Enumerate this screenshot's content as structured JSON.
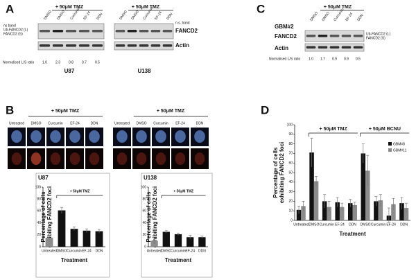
{
  "panel_a": {
    "label": "A",
    "treatments": [
      "+ 50μM TMZ",
      "+ 50μM TMZ"
    ],
    "lanes_u87": [
      "DMSO",
      "DMSO",
      "Curcumin",
      "EF-24",
      "DDN"
    ],
    "lanes_u138": [
      "DMSO",
      "DMSO",
      "Curcumin",
      "EF-24",
      "DDN"
    ],
    "band_labels_left": [
      "ns band",
      "Ub-FANCD2 (L)",
      "FANCD2 (S)"
    ],
    "band_label_right": "n.s. band",
    "protein": "FANCD2",
    "loading": "Actin",
    "ratio_label": "Normalised L/S ratio",
    "ratios": [
      "1.0",
      "2.3",
      "0.8",
      "0.7",
      "0.5"
    ],
    "cell_lines": [
      "U87",
      "U138"
    ]
  },
  "panel_c": {
    "label": "C",
    "treatment": "+ 50μM TMZ",
    "sample": "GBM#2",
    "lanes": [
      "DMSO",
      "DMSO",
      "Curcumin",
      "EF-24",
      "DDN"
    ],
    "protein": "FANCD2",
    "loading": "Actin",
    "band_labels_right": [
      "Ub-FANCD2 (L)",
      "FANCD2 (S)"
    ],
    "ratio_label": "Normalised L/S ratio",
    "ratios": [
      "1.0",
      "1.7",
      "0.9",
      "0.9",
      "0.5"
    ]
  },
  "panel_b": {
    "label": "B",
    "treatments": [
      "+ 50μM TMZ",
      "+ 50μM TMZ"
    ],
    "image_columns": [
      [
        "Untreated",
        "DMSO",
        "Curcumin",
        "EF-24",
        "DDN"
      ],
      [
        "Untreated",
        "DMSO",
        "Curcumin",
        "EF-24",
        "DDN"
      ]
    ]
  },
  "panel_d": {
    "label": "D"
  },
  "chart_data": [
    {
      "type": "bar",
      "title": "U87",
      "y_label": [
        "Percentage of cells",
        "exhibiting FANCD2 foci"
      ],
      "x_label": "Treatment",
      "annotation": "+ 50μM TMZ",
      "categories": [
        "Untreated",
        "DMSO",
        "Curcumin",
        "EF-24",
        "DDN"
      ],
      "values": [
        15,
        61,
        30,
        27,
        26
      ],
      "errors": [
        4,
        5,
        3,
        3,
        3
      ],
      "colors": [
        "#8c8c8c",
        "#111111",
        "#111111",
        "#111111",
        "#111111"
      ],
      "ylim": [
        0,
        100
      ],
      "yticks": [
        0,
        20,
        40,
        60,
        80,
        100
      ]
    },
    {
      "type": "bar",
      "title": "U138",
      "y_label": [
        "Percentage of cells",
        "exhibiting FANCD2 foci"
      ],
      "x_label": "Treatment",
      "annotation": "+ 50μM TMZ",
      "categories": [
        "Untreated",
        "DMSO",
        "Curcumin",
        "EF-24",
        "DDN"
      ],
      "values": [
        10,
        25,
        21,
        16,
        16
      ],
      "errors": [
        5,
        2,
        2,
        3,
        2
      ],
      "colors": [
        "#8c8c8c",
        "#111111",
        "#111111",
        "#111111",
        "#111111"
      ],
      "ylim": [
        0,
        100
      ],
      "yticks": [
        0,
        20,
        40,
        60,
        80,
        100
      ]
    },
    {
      "type": "grouped_bar",
      "y_label": [
        "Percentage of cells",
        "exhibiting FANCD2 foci"
      ],
      "x_label": "Treatment",
      "annotations": [
        "+ 50μM TMZ",
        "+ 50μM BCNU"
      ],
      "categories": [
        "Untreated",
        "DMSO",
        "Curcumin",
        "EF-24",
        "DDN",
        "DMSO",
        "Curcumin",
        "EF-24",
        "DDN"
      ],
      "series": [
        {
          "name": "GBM#8",
          "color": "#111111",
          "values": [
            11,
            71,
            20,
            19,
            18,
            70,
            20,
            5,
            18
          ],
          "errors": [
            4,
            15,
            7,
            5,
            4,
            10,
            5,
            8,
            6
          ]
        },
        {
          "name": "GBM#11",
          "color": "#8c8c8c",
          "values": [
            15,
            41,
            14,
            14,
            16,
            52,
            21,
            17,
            13
          ],
          "errors": [
            5,
            5,
            6,
            4,
            3,
            16,
            6,
            6,
            5
          ]
        }
      ],
      "ylim": [
        0,
        100
      ],
      "yticks": [
        0,
        10,
        20,
        30,
        40,
        50,
        60,
        70,
        80,
        90,
        100
      ],
      "legend": "upper right"
    }
  ]
}
